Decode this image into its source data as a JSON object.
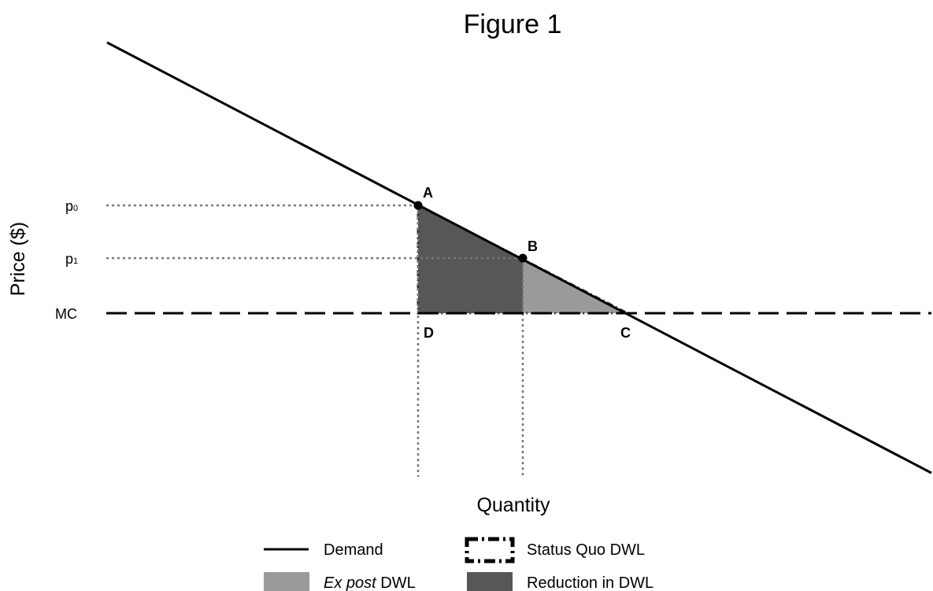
{
  "chart_data": {
    "type": "diagram",
    "title": "Figure 1",
    "xlabel": "Quantity",
    "ylabel": "Price ($)",
    "y_ticks": [
      {
        "key": "p0",
        "base": "p",
        "sub": "0"
      },
      {
        "key": "p1",
        "base": "p",
        "sub": "1"
      },
      {
        "key": "MC",
        "base": "MC",
        "sub": ""
      }
    ],
    "points": [
      {
        "label": "A",
        "marker": true
      },
      {
        "label": "B",
        "marker": true
      },
      {
        "label": "C",
        "marker": false
      },
      {
        "label": "D",
        "marker": false
      }
    ],
    "lines": {
      "demand": "Demand",
      "mc": "MC"
    },
    "regions": {
      "ex_post_dwl": {
        "color": "#9a9a9a"
      },
      "reduction_in_dwl": {
        "color": "#575757"
      },
      "status_quo_dwl": {
        "border": "dash-dot"
      }
    },
    "legend": {
      "demand": "Demand",
      "status_quo": "Status Quo DWL",
      "ex_post_italic": "Ex post",
      "ex_post_rest": " DWL",
      "reduction": "Reduction in DWL"
    },
    "colors": {
      "light_fill": "#9a9a9a",
      "dark_fill": "#575757",
      "line": "#000000",
      "guide": "#777777"
    }
  }
}
